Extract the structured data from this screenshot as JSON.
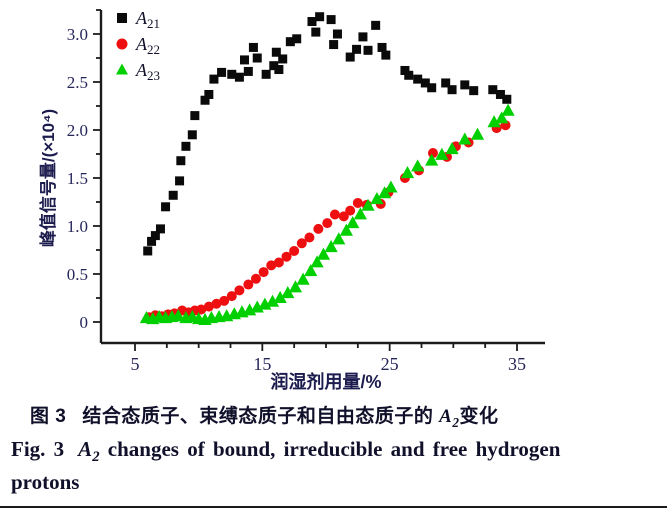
{
  "chart_data": {
    "type": "scatter",
    "title": "",
    "xlabel": "润湿剂用量/%",
    "ylabel": "峰值信号量/(×10⁴)",
    "xlim": [
      2.3,
      37.2
    ],
    "ylim": [
      -0.22,
      3.47
    ],
    "x_major_ticks": [
      5,
      15,
      25,
      35
    ],
    "x_tick_labels": [
      "5",
      "15",
      "25",
      "35"
    ],
    "x_minor_step": 2.5,
    "y_major_ticks": [
      0,
      0.5,
      1.0,
      1.5,
      2.0,
      2.5,
      3.0
    ],
    "y_tick_labels": [
      "0",
      "0.5",
      "1.0",
      "1.5",
      "2.0",
      "2.5",
      "3.0"
    ],
    "y_minor_step": 0.25,
    "grid": false,
    "legend_position": "top-left",
    "axis_color": "#1c1c1c",
    "tick_label_color": "#26265a",
    "axis_title_color": "#1c1c4e",
    "series": [
      {
        "name": "A21",
        "label_base": "A",
        "label_sub": "21",
        "marker": "square",
        "color": "#0a0a0a",
        "points": [
          [
            6.0,
            0.74
          ],
          [
            6.3,
            0.84
          ],
          [
            6.6,
            0.9
          ],
          [
            7.0,
            0.97
          ],
          [
            7.4,
            1.2
          ],
          [
            8.0,
            1.32
          ],
          [
            8.5,
            1.47
          ],
          [
            8.6,
            1.68
          ],
          [
            9.0,
            1.83
          ],
          [
            9.5,
            1.95
          ],
          [
            9.7,
            2.15
          ],
          [
            10.5,
            2.31
          ],
          [
            10.8,
            2.37
          ],
          [
            11.2,
            2.53
          ],
          [
            11.8,
            2.6
          ],
          [
            12.6,
            2.58
          ],
          [
            13.2,
            2.55
          ],
          [
            13.6,
            2.73
          ],
          [
            13.9,
            2.61
          ],
          [
            14.3,
            2.86
          ],
          [
            14.6,
            2.75
          ],
          [
            15.3,
            2.58
          ],
          [
            15.9,
            2.67
          ],
          [
            16.1,
            2.81
          ],
          [
            16.3,
            2.63
          ],
          [
            16.6,
            2.74
          ],
          [
            17.2,
            2.92
          ],
          [
            17.7,
            2.95
          ],
          [
            18.9,
            3.13
          ],
          [
            19.2,
            3.02
          ],
          [
            19.5,
            3.18
          ],
          [
            20.4,
            3.15
          ],
          [
            20.6,
            2.89
          ],
          [
            20.9,
            3.0
          ],
          [
            21.9,
            2.76
          ],
          [
            22.4,
            2.84
          ],
          [
            22.9,
            2.97
          ],
          [
            23.3,
            2.83
          ],
          [
            23.9,
            3.09
          ],
          [
            24.4,
            2.86
          ],
          [
            24.7,
            2.78
          ],
          [
            26.2,
            2.62
          ],
          [
            26.5,
            2.57
          ],
          [
            27.2,
            2.53
          ],
          [
            27.8,
            2.49
          ],
          [
            28.3,
            2.44
          ],
          [
            29.4,
            2.49
          ],
          [
            29.9,
            2.42
          ],
          [
            30.9,
            2.47
          ],
          [
            31.6,
            2.41
          ],
          [
            33.1,
            2.42
          ],
          [
            33.7,
            2.37
          ],
          [
            34.2,
            2.32
          ]
        ]
      },
      {
        "name": "A22",
        "label_base": "A",
        "label_sub": "22",
        "marker": "circle",
        "color": "#ee1010",
        "points": [
          [
            6.1,
            0.05
          ],
          [
            6.6,
            0.07
          ],
          [
            7.1,
            0.06
          ],
          [
            7.6,
            0.08
          ],
          [
            8.1,
            0.09
          ],
          [
            8.7,
            0.12
          ],
          [
            9.2,
            0.1
          ],
          [
            9.7,
            0.12
          ],
          [
            10.2,
            0.13
          ],
          [
            10.8,
            0.16
          ],
          [
            11.4,
            0.19
          ],
          [
            12.0,
            0.22
          ],
          [
            12.6,
            0.27
          ],
          [
            13.2,
            0.33
          ],
          [
            13.9,
            0.39
          ],
          [
            14.5,
            0.45
          ],
          [
            15.1,
            0.52
          ],
          [
            15.7,
            0.59
          ],
          [
            16.3,
            0.62
          ],
          [
            16.9,
            0.68
          ],
          [
            17.5,
            0.74
          ],
          [
            18.1,
            0.82
          ],
          [
            18.7,
            0.88
          ],
          [
            19.4,
            0.97
          ],
          [
            20.1,
            1.03
          ],
          [
            20.7,
            1.12
          ],
          [
            21.4,
            1.1
          ],
          [
            21.9,
            1.16
          ],
          [
            22.5,
            1.24
          ],
          [
            23.2,
            1.22
          ],
          [
            24.3,
            1.23
          ],
          [
            24.9,
            1.35
          ],
          [
            26.2,
            1.5
          ],
          [
            27.3,
            1.58
          ],
          [
            28.4,
            1.76
          ],
          [
            29.5,
            1.72
          ],
          [
            30.2,
            1.83
          ],
          [
            31.2,
            1.87
          ],
          [
            33.4,
            2.02
          ],
          [
            34.1,
            2.05
          ]
        ]
      },
      {
        "name": "A23",
        "label_base": "A",
        "label_sub": "23",
        "marker": "triangle",
        "color": "#00cf00",
        "points": [
          [
            5.9,
            0.04
          ],
          [
            6.4,
            0.03
          ],
          [
            6.9,
            0.05
          ],
          [
            7.4,
            0.04
          ],
          [
            7.9,
            0.05
          ],
          [
            8.4,
            0.06
          ],
          [
            9.0,
            0.04
          ],
          [
            9.5,
            0.05
          ],
          [
            10.0,
            0.03
          ],
          [
            10.5,
            0.02
          ],
          [
            11.0,
            0.04
          ],
          [
            11.6,
            0.05
          ],
          [
            12.2,
            0.06
          ],
          [
            12.8,
            0.08
          ],
          [
            13.4,
            0.1
          ],
          [
            14.0,
            0.12
          ],
          [
            14.6,
            0.15
          ],
          [
            15.2,
            0.18
          ],
          [
            15.8,
            0.21
          ],
          [
            16.4,
            0.25
          ],
          [
            17.0,
            0.3
          ],
          [
            17.6,
            0.36
          ],
          [
            18.2,
            0.44
          ],
          [
            18.8,
            0.53
          ],
          [
            19.3,
            0.62
          ],
          [
            19.8,
            0.7
          ],
          [
            20.4,
            0.78
          ],
          [
            21.0,
            0.86
          ],
          [
            21.6,
            0.95
          ],
          [
            22.1,
            1.03
          ],
          [
            22.7,
            1.12
          ],
          [
            23.3,
            1.21
          ],
          [
            24.0,
            1.28
          ],
          [
            24.6,
            1.34
          ],
          [
            25.1,
            1.4
          ],
          [
            26.4,
            1.55
          ],
          [
            27.2,
            1.62
          ],
          [
            28.3,
            1.68
          ],
          [
            29.1,
            1.74
          ],
          [
            29.9,
            1.8
          ],
          [
            30.9,
            1.9
          ],
          [
            31.9,
            1.95
          ],
          [
            33.2,
            2.08
          ],
          [
            33.8,
            2.12
          ],
          [
            34.3,
            2.2
          ]
        ]
      }
    ]
  },
  "caption": {
    "zh_prefix": "图 3",
    "zh_main": "结合态质子、束缚态质子和自由态质子的",
    "var_base": "A",
    "var_sub": "2",
    "zh_suffix": "变化",
    "en_prefix": "Fig. 3",
    "en_main": "changes of bound, irreducible and free hydrogen",
    "en_line2": "protons"
  }
}
